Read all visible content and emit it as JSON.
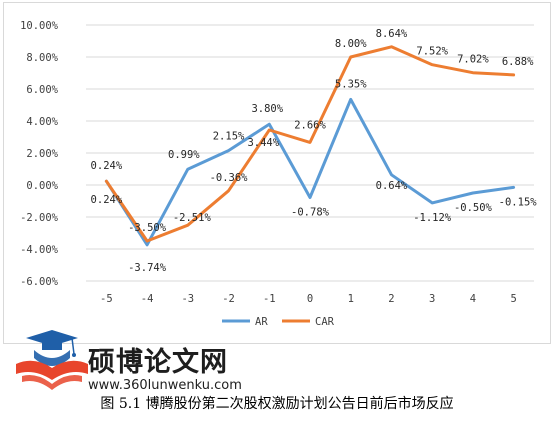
{
  "chart_data": {
    "type": "line",
    "title": "",
    "xlabel": "",
    "ylabel": "",
    "categories": [
      "-5",
      "-4",
      "-3",
      "-2",
      "-1",
      "0",
      "1",
      "2",
      "3",
      "4",
      "5"
    ],
    "ylim": [
      -6,
      10
    ],
    "ytick_labels": [
      "-6.00%",
      "-4.00%",
      "-2.00%",
      "0.00%",
      "2.00%",
      "4.00%",
      "6.00%",
      "8.00%",
      "10.00%"
    ],
    "ytick_values": [
      -6,
      -4,
      -2,
      0,
      2,
      4,
      6,
      8,
      10
    ],
    "grid": true,
    "legend_position": "bottom",
    "series": [
      {
        "name": "AR",
        "color": "#5b9bd5",
        "values": [
          0.24,
          -3.74,
          0.99,
          2.15,
          3.8,
          -0.78,
          5.35,
          0.64,
          -1.12,
          -0.5,
          -0.15
        ],
        "labels": [
          "0.24%",
          "-3.74%",
          "0.99%",
          "2.15%",
          "3.80%",
          "-0.78%",
          "5.35%",
          "0.64%",
          "-1.12%",
          "-0.50%",
          "-0.15%"
        ]
      },
      {
        "name": "CAR",
        "color": "#ed7d31",
        "values": [
          0.24,
          -3.5,
          -2.51,
          -0.36,
          3.44,
          2.66,
          8.0,
          8.64,
          7.52,
          7.02,
          6.88
        ],
        "labels": [
          "0.24%",
          "-3.50%",
          "-2.51%",
          "-0.36%",
          "3.44%",
          "2.66%",
          "8.00%",
          "8.64%",
          "7.52%",
          "7.02%",
          "6.88%"
        ]
      }
    ]
  },
  "watermark": {
    "name": "硕博论文网",
    "url": "www.360lunwenku.com",
    "icon": "graduation-cap-icon",
    "colors": {
      "cap": "#1f5fa8",
      "book": "#e8452c"
    }
  },
  "caption": "图 5.1 博腾股份第二次股权激励计划公告日前后市场反应"
}
